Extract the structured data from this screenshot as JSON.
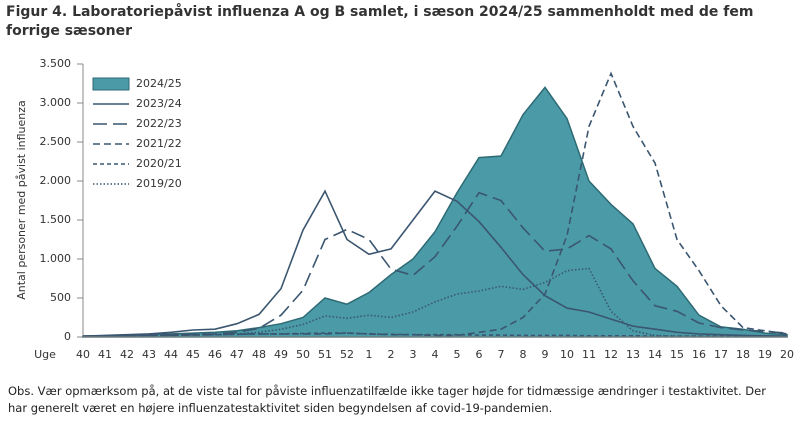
{
  "chart_data": {
    "type": "line",
    "title": "Figur 4. Laboratoriepåvist influenza A og B samlet, i sæson 2024/25 sammenholdt med de fem forrige sæsoner",
    "ylabel": "Antal personer med påvist influenza",
    "xlabel": "Uge",
    "note": "Obs. Vær opmærksom på, at de viste tal for påviste influenzatilfælde ikke tager højde for tidmæssige ændringer i testaktivitet. Der har generelt været en højere influenzatestaktivitet siden begyndelsen  af covid-19-pandemien.",
    "categories": [
      "40",
      "41",
      "42",
      "43",
      "44",
      "45",
      "46",
      "47",
      "48",
      "49",
      "50",
      "51",
      "52",
      "1",
      "2",
      "3",
      "4",
      "5",
      "6",
      "7",
      "8",
      "9",
      "10",
      "11",
      "12",
      "13",
      "14",
      "15",
      "16",
      "17",
      "18",
      "19",
      "20"
    ],
    "ylim": [
      0,
      3500
    ],
    "yticks": [
      0,
      500,
      {
        "value": 1000,
        "label": "1.000"
      },
      {
        "value": 1500,
        "label": "1.500"
      },
      {
        "value": 2000,
        "label": "2.000"
      },
      {
        "value": 2500,
        "label": "2.500"
      },
      {
        "value": 3000,
        "label": "3.000"
      },
      {
        "value": 3500,
        "label": "3.500"
      }
    ],
    "legend": "top-left",
    "series": [
      {
        "name": "2024/25",
        "kind": "area",
        "color": "#4a9ba7",
        "values": [
          10,
          15,
          20,
          30,
          40,
          50,
          60,
          80,
          120,
          170,
          250,
          500,
          420,
          570,
          800,
          1000,
          1350,
          1850,
          2300,
          2320,
          2850,
          3200,
          2800,
          2000,
          1700,
          1450,
          880,
          650,
          280,
          130,
          100,
          50,
          30
        ]
      },
      {
        "name": "2023/24",
        "linestyle": "solid",
        "color": "#3b5670",
        "values": [
          10,
          20,
          30,
          40,
          60,
          90,
          100,
          170,
          290,
          620,
          1370,
          1870,
          1250,
          1060,
          1130,
          1500,
          1870,
          1740,
          1480,
          1150,
          800,
          530,
          370,
          320,
          230,
          140,
          100,
          60,
          40,
          30,
          20,
          15,
          10
        ]
      },
      {
        "name": "2022/23",
        "linestyle": "long-dash",
        "color": "#3b5670",
        "values": [
          10,
          15,
          20,
          25,
          30,
          35,
          40,
          60,
          110,
          280,
          600,
          1250,
          1380,
          1250,
          870,
          790,
          1030,
          1420,
          1850,
          1750,
          1400,
          1100,
          1130,
          1300,
          1130,
          720,
          400,
          330,
          180,
          120,
          90,
          70,
          50
        ]
      },
      {
        "name": "2021/22",
        "linestyle": "dash",
        "color": "#3b5670",
        "values": [
          10,
          15,
          15,
          20,
          20,
          25,
          30,
          35,
          40,
          40,
          40,
          40,
          50,
          40,
          30,
          30,
          20,
          20,
          60,
          100,
          250,
          550,
          1300,
          2700,
          3380,
          2700,
          2230,
          1250,
          850,
          400,
          120,
          80,
          40
        ]
      },
      {
        "name": "2020/21",
        "linestyle": "short-dash",
        "color": "#3b5670",
        "values": [
          10,
          15,
          20,
          20,
          25,
          30,
          30,
          35,
          40,
          40,
          45,
          50,
          50,
          40,
          35,
          30,
          30,
          30,
          25,
          25,
          20,
          20,
          20,
          15,
          15,
          15,
          10,
          10,
          10,
          10,
          10,
          10,
          10
        ]
      },
      {
        "name": "2019/20",
        "linestyle": "dotted",
        "color": "#3b5670",
        "values": [
          5,
          10,
          15,
          20,
          25,
          28,
          30,
          40,
          60,
          100,
          160,
          270,
          240,
          280,
          250,
          320,
          450,
          550,
          590,
          650,
          610,
          700,
          850,
          880,
          330,
          80,
          20,
          10,
          10,
          5,
          5,
          5,
          5
        ]
      }
    ]
  }
}
